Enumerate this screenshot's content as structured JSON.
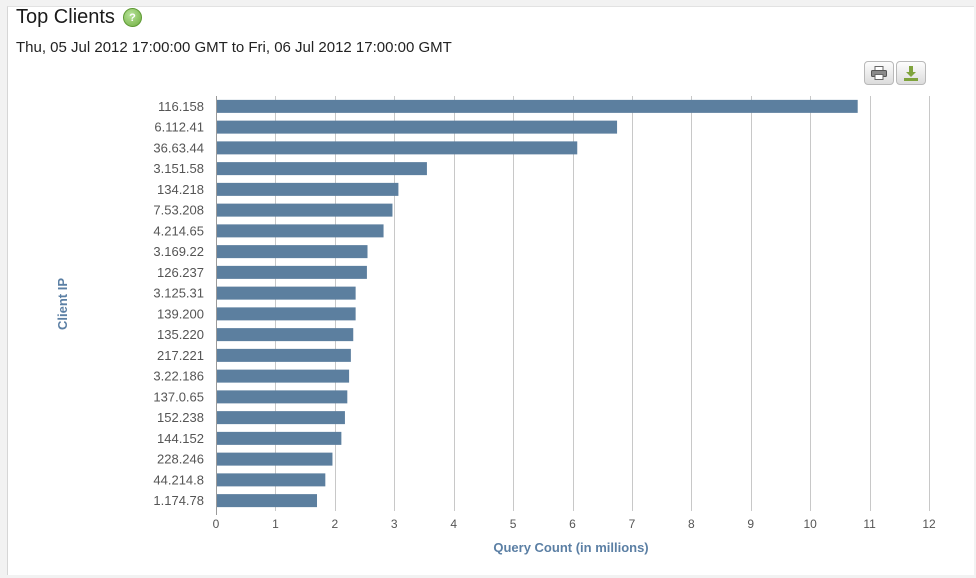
{
  "header": {
    "title": "Top Clients",
    "help_icon": "help-icon",
    "subtitle": "Thu, 05 Jul 2012 17:00:00 GMT to Fri, 06 Jul 2012 17:00:00 GMT"
  },
  "toolbar": {
    "print_icon": "print-icon",
    "download_icon": "download-icon"
  },
  "colors": {
    "bar": "#5c7f9f",
    "grid": "#c8c8c8",
    "axis_title": "#5b7fa4"
  },
  "chart_data": {
    "type": "bar",
    "orientation": "horizontal",
    "xlabel": "Query Count (in millions)",
    "ylabel": "Client IP",
    "xlim": [
      0,
      12
    ],
    "xticks": [
      0,
      1,
      2,
      3,
      4,
      5,
      6,
      7,
      8,
      9,
      10,
      11,
      12
    ],
    "grid": true,
    "categories": [
      "116.158",
      "6.112.41",
      "36.63.44",
      "3.151.58",
      "134.218",
      "7.53.208",
      "4.214.65",
      "3.169.22",
      "126.237",
      "3.125.31",
      "139.200",
      "135.220",
      "217.221",
      "3.22.186",
      "137.0.65",
      "152.238",
      "144.152",
      "228.246",
      "44.214.8",
      "1.174.78"
    ],
    "values": [
      10.8,
      6.75,
      6.08,
      3.55,
      3.07,
      2.97,
      2.82,
      2.55,
      2.54,
      2.35,
      2.35,
      2.31,
      2.27,
      2.24,
      2.21,
      2.17,
      2.11,
      1.96,
      1.84,
      1.7
    ]
  }
}
